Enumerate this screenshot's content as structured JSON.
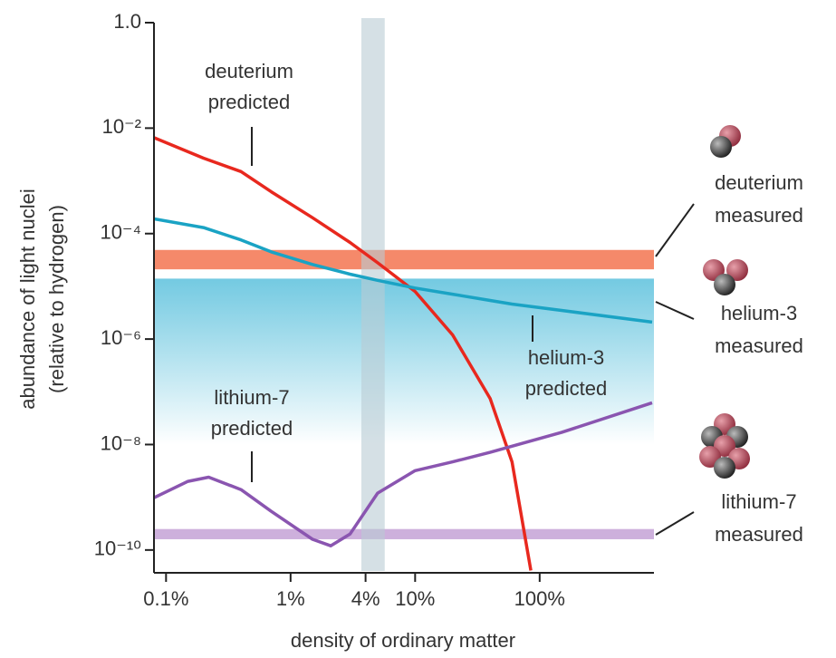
{
  "chart_data": {
    "type": "line",
    "xscale": "log",
    "yscale": "log",
    "xlabel": "density of ordinary matter",
    "ylabel": [
      "abundance of light nuclei",
      "(relative to hydrogen)"
    ],
    "xlim": [
      0.08,
      800
    ],
    "ylim": [
      4e-11,
      1
    ],
    "xticks": [
      {
        "value": 0.1,
        "label": "0.1%"
      },
      {
        "value": 1,
        "label": "1%"
      },
      {
        "value": 4,
        "label": "4%"
      },
      {
        "value": 10,
        "label": "10%"
      },
      {
        "value": 100,
        "label": "100%"
      }
    ],
    "yticks": [
      {
        "value": 1,
        "label": "1.0"
      },
      {
        "value": 0.01,
        "label": "10⁻²"
      },
      {
        "value": 0.0001,
        "label": "10⁻⁴"
      },
      {
        "value": 1e-06,
        "label": "10⁻⁶"
      },
      {
        "value": 1e-08,
        "label": "10⁻⁸"
      },
      {
        "value": 1e-10,
        "label": "10⁻¹⁰"
      }
    ],
    "grid": false,
    "xband": {
      "range": [
        3.7,
        5.7
      ],
      "color": "#b9ccd3"
    },
    "bands": [
      {
        "name": [
          "deuterium",
          "measured"
        ],
        "color": "#f5896a",
        "range": [
          2.1e-05,
          4.9e-05
        ]
      },
      {
        "name": [
          "helium-3",
          "measured"
        ],
        "color": "#8fd4e6",
        "range": [
          1e-08,
          1.4e-05
        ]
      },
      {
        "name": [
          "lithium-7",
          "measured"
        ],
        "color": "#cdb0dc",
        "range": [
          1.6e-10,
          2.5e-10
        ]
      }
    ],
    "series": [
      {
        "name": [
          "deuterium",
          "predicted"
        ],
        "color": "#e8281e",
        "x": [
          0.08,
          0.2,
          0.4,
          0.7,
          1.5,
          3,
          5,
          10,
          20,
          40,
          60,
          85
        ],
        "values": [
          0.0066,
          0.0027,
          0.0015,
          0.00062,
          0.0002,
          6.8e-05,
          2.8e-05,
          8e-06,
          1.2e-06,
          7.5e-08,
          4.7e-09,
          4.1e-11
        ]
      },
      {
        "name": [
          "helium-3",
          "predicted"
        ],
        "color": "#1aa3c4",
        "x": [
          0.08,
          0.2,
          0.4,
          0.7,
          1.5,
          3,
          5,
          10,
          20,
          40,
          60,
          150,
          800
        ],
        "values": [
          0.00019,
          0.00013,
          7.6e-05,
          4.5e-05,
          2.6e-05,
          1.7e-05,
          1.3e-05,
          9.3e-06,
          7.1e-06,
          5.4e-06,
          4.6e-06,
          3.5e-06,
          2.1e-06
        ]
      },
      {
        "name": [
          "lithium-7",
          "predicted"
        ],
        "color": "#8a55b0",
        "x": [
          0.08,
          0.15,
          0.22,
          0.4,
          0.7,
          1.5,
          2.1,
          3,
          5,
          10,
          20,
          40,
          150,
          800
        ],
        "values": [
          9.8e-10,
          2e-09,
          2.4e-09,
          1.4e-09,
          5.4e-10,
          1.6e-10,
          1.2e-10,
          2e-10,
          1.2e-09,
          3.2e-09,
          4.7e-09,
          7.1e-09,
          1.7e-08,
          6.2e-08
        ]
      }
    ]
  }
}
